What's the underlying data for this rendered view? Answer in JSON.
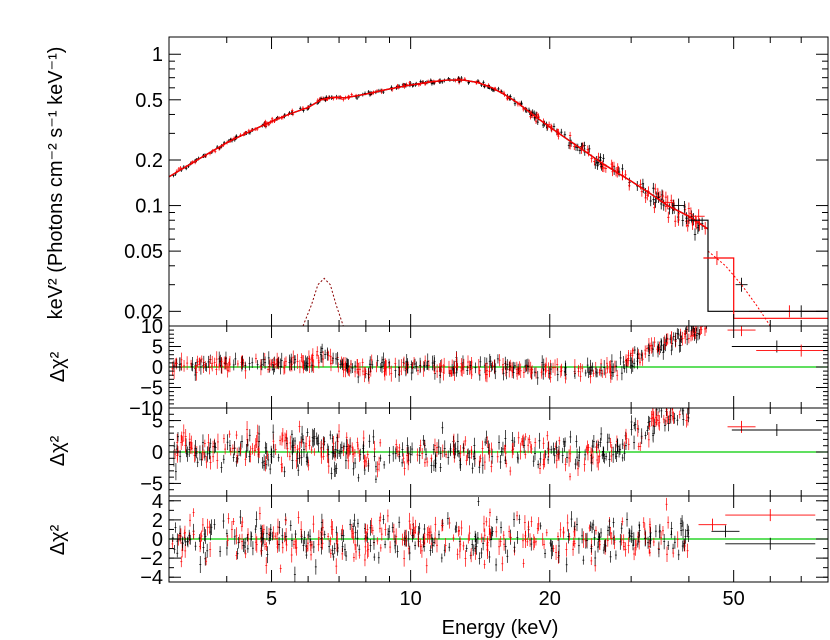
{
  "chart_data": [
    {
      "type": "line",
      "panel": "spectrum",
      "ylabel": "keV² (Photons cm⁻² s⁻¹ keV⁻¹)",
      "xscale": "log",
      "yscale": "log",
      "xlim": [
        3,
        80
      ],
      "ylim": [
        0.016,
        1.3
      ],
      "yticks": [
        1,
        0.5,
        0.2,
        0.1,
        0.05,
        0.02
      ],
      "ytick_labels": [
        "1",
        "0.5",
        "0.2",
        "0.1",
        "0.05",
        "0.02"
      ],
      "series": [
        {
          "color": "#000000",
          "x": [
            3.0,
            3.5,
            4,
            4.5,
            5,
            5.5,
            6,
            6.4,
            6.8,
            7.2,
            8,
            9,
            10,
            11,
            12,
            13,
            14,
            15,
            16,
            17,
            18,
            19,
            20,
            22,
            24,
            26,
            28,
            30,
            33,
            36,
            40,
            44
          ],
          "y": [
            0.155,
            0.205,
            0.26,
            0.31,
            0.36,
            0.405,
            0.445,
            0.5,
            0.52,
            0.515,
            0.545,
            0.59,
            0.625,
            0.655,
            0.675,
            0.675,
            0.65,
            0.6,
            0.54,
            0.48,
            0.42,
            0.37,
            0.33,
            0.27,
            0.225,
            0.19,
            0.165,
            0.145,
            0.12,
            0.1,
            0.085,
            0.07
          ]
        },
        {
          "color": "#ff0000",
          "x": [
            3.0,
            3.5,
            4,
            4.5,
            5,
            5.5,
            6,
            6.4,
            6.8,
            7.2,
            8,
            9,
            10,
            11,
            12,
            13,
            14,
            15,
            16,
            17,
            18,
            19,
            20,
            22,
            24,
            26,
            28,
            30,
            33,
            36,
            40,
            44
          ],
          "y": [
            0.155,
            0.205,
            0.26,
            0.31,
            0.36,
            0.405,
            0.445,
            0.5,
            0.52,
            0.515,
            0.545,
            0.59,
            0.625,
            0.655,
            0.675,
            0.675,
            0.65,
            0.6,
            0.54,
            0.48,
            0.42,
            0.37,
            0.33,
            0.27,
            0.225,
            0.19,
            0.165,
            0.145,
            0.12,
            0.1,
            0.085,
            0.07
          ]
        },
        {
          "component": "gaussian line",
          "color": "#8b0000",
          "x": [
            5.85,
            6.1,
            6.3,
            6.5,
            6.7,
            6.9,
            7.15
          ],
          "y": [
            0.016,
            0.022,
            0.03,
            0.033,
            0.03,
            0.022,
            0.016
          ]
        },
        {
          "component": "dotted model",
          "color": "#ff0000",
          "x": [
            44,
            48,
            52,
            56,
            60
          ],
          "y": [
            0.05,
            0.04,
            0.03,
            0.022,
            0.016
          ]
        }
      ],
      "steps": [
        {
          "color": "#000000",
          "x": [
            40,
            44,
            44,
            80
          ],
          "y": [
            0.08,
            0.08,
            0.02,
            0.02
          ]
        },
        {
          "color": "#ff0000",
          "x": [
            43,
            50,
            50,
            80
          ],
          "y": [
            0.045,
            0.045,
            0.018,
            0.018
          ]
        }
      ]
    },
    {
      "type": "scatter",
      "panel": "residuals-1",
      "ylabel": "Δχ²",
      "xscale": "log",
      "xlim": [
        3,
        80
      ],
      "ylim": [
        -10,
        10
      ],
      "yticks": [
        10,
        5,
        0,
        -5,
        -10
      ],
      "ytick_labels": [
        "10",
        "5",
        "0",
        "−5",
        "−10"
      ],
      "reference_line": 0,
      "trend": {
        "x": [
          3,
          6,
          6.6,
          7.2,
          10,
          20,
          25,
          28,
          32,
          36,
          40,
          44
        ],
        "y": [
          0.5,
          1,
          3,
          -0.5,
          0,
          -0.5,
          -1,
          0,
          3,
          6,
          8,
          9.5
        ]
      },
      "outliers": [
        {
          "x": 52,
          "y": 9
        },
        {
          "x": 62,
          "y": 5
        },
        {
          "x": 70,
          "y": 4
        }
      ]
    },
    {
      "type": "scatter",
      "panel": "residuals-2",
      "ylabel": "Δχ²",
      "xscale": "log",
      "xlim": [
        3,
        80
      ],
      "ylim": [
        -7,
        7
      ],
      "yticks": [
        5,
        0,
        -5
      ],
      "ytick_labels": [
        "5",
        "0",
        "−5"
      ],
      "reference_line": 0,
      "trend": {
        "x": [
          3,
          10,
          20,
          26,
          28,
          32,
          36,
          40
        ],
        "y": [
          0.5,
          0,
          0,
          -0.5,
          0.5,
          3,
          6,
          7
        ]
      },
      "outliers": [
        {
          "x": 52,
          "y": 4
        },
        {
          "x": 62,
          "y": 3.5
        }
      ]
    },
    {
      "type": "scatter",
      "panel": "residuals-3",
      "ylabel": "Δχ²",
      "xlabel": "Energy (keV)",
      "xscale": "log",
      "xlim": [
        3,
        80
      ],
      "ylim": [
        -4.5,
        4.5
      ],
      "yticks": [
        4,
        2,
        0,
        -2,
        -4
      ],
      "ytick_labels": [
        "4",
        "2",
        "0",
        "−2",
        "−4"
      ],
      "xticks": [
        5,
        10,
        20,
        50
      ],
      "xtick_labels": [
        "5",
        "10",
        "20",
        "50"
      ],
      "reference_line": 0,
      "trend": {
        "x": [
          3,
          10,
          20,
          30,
          40
        ],
        "y": [
          0,
          0,
          0,
          0,
          0
        ]
      },
      "outliers": [
        {
          "x": 45,
          "y": 1.5
        },
        {
          "x": 48,
          "y": 0.8
        },
        {
          "x": 60,
          "y": 2.5
        },
        {
          "x": 60,
          "y": -0.5
        }
      ]
    }
  ]
}
